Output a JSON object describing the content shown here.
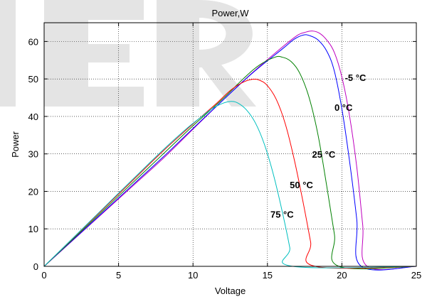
{
  "chart_data": {
    "type": "line",
    "title": "Power,W",
    "xlabel": "Voltage",
    "ylabel": "Power",
    "xlim": [
      0,
      25
    ],
    "ylim": [
      0,
      65
    ],
    "xticks": [
      0,
      5,
      10,
      15,
      20,
      25
    ],
    "yticks": [
      0,
      10,
      20,
      30,
      40,
      50,
      60
    ],
    "grid": true,
    "series": [
      {
        "name": "-5 °C",
        "color": "#bf00bf",
        "label_at": [
          20.2,
          49.5
        ],
        "points": [
          [
            0,
            0
          ],
          [
            2,
            7.2
          ],
          [
            4,
            14.4
          ],
          [
            6,
            21.6
          ],
          [
            8,
            28.8
          ],
          [
            10,
            36.6
          ],
          [
            12,
            44.3
          ],
          [
            14,
            51.7
          ],
          [
            16,
            58.5
          ],
          [
            17.0,
            61.6
          ],
          [
            17.5,
            62.4
          ],
          [
            18.0,
            62.8
          ],
          [
            18.5,
            62.2
          ],
          [
            19.0,
            60.3
          ],
          [
            19.5,
            57.0
          ],
          [
            20.0,
            50.5
          ],
          [
            20.5,
            40.5
          ],
          [
            21.0,
            26.5
          ],
          [
            21.4,
            11.0
          ],
          [
            21.7,
            0
          ],
          [
            25,
            0
          ]
        ]
      },
      {
        "name": "0 °C",
        "color": "#0000ff",
        "label_at": [
          19.5,
          41.5
        ],
        "points": [
          [
            0,
            0
          ],
          [
            2,
            7.3
          ],
          [
            4,
            14.6
          ],
          [
            6,
            21.9
          ],
          [
            8,
            29.2
          ],
          [
            10,
            36.8
          ],
          [
            12,
            44.3
          ],
          [
            14,
            51.6
          ],
          [
            16,
            58.0
          ],
          [
            16.8,
            60.6
          ],
          [
            17.4,
            61.7
          ],
          [
            17.8,
            61.6
          ],
          [
            18.4,
            60.4
          ],
          [
            19.0,
            57.3
          ],
          [
            19.5,
            52.0
          ],
          [
            20.0,
            42.0
          ],
          [
            20.5,
            28.5
          ],
          [
            21.0,
            12.5
          ],
          [
            21.3,
            0
          ],
          [
            25,
            0
          ]
        ]
      },
      {
        "name": "25 °C",
        "color": "#008000",
        "label_at": [
          18.0,
          29.0
        ],
        "points": [
          [
            0,
            0
          ],
          [
            2,
            7.5
          ],
          [
            4,
            15.0
          ],
          [
            6,
            22.5
          ],
          [
            8,
            30.0
          ],
          [
            10,
            37.5
          ],
          [
            12,
            44.7
          ],
          [
            13.5,
            50.5
          ],
          [
            14.5,
            53.8
          ],
          [
            15.5,
            55.8
          ],
          [
            16.0,
            55.8
          ],
          [
            16.6,
            54.6
          ],
          [
            17.2,
            51.3
          ],
          [
            17.8,
            45.0
          ],
          [
            18.4,
            35.0
          ],
          [
            19.0,
            21.0
          ],
          [
            19.5,
            8.5
          ],
          [
            19.8,
            0
          ],
          [
            25,
            0
          ]
        ]
      },
      {
        "name": "50 °C",
        "color": "#ff0000",
        "label_at": [
          16.5,
          20.8
        ],
        "points": [
          [
            0,
            0
          ],
          [
            2,
            7.7
          ],
          [
            4,
            15.4
          ],
          [
            6,
            23.1
          ],
          [
            8,
            30.8
          ],
          [
            10,
            38.0
          ],
          [
            11.5,
            43.2
          ],
          [
            12.5,
            46.9
          ],
          [
            13.3,
            49.0
          ],
          [
            14.0,
            49.9
          ],
          [
            14.5,
            49.6
          ],
          [
            15.0,
            48.2
          ],
          [
            15.6,
            44.5
          ],
          [
            16.2,
            38.0
          ],
          [
            16.8,
            28.5
          ],
          [
            17.4,
            17.0
          ],
          [
            17.9,
            6.5
          ],
          [
            18.2,
            0
          ],
          [
            25,
            0
          ]
        ]
      },
      {
        "name": "75 °C",
        "color": "#00bfbf",
        "label_at": [
          15.2,
          13.0
        ],
        "points": [
          [
            0,
            0
          ],
          [
            2,
            7.8
          ],
          [
            4,
            15.6
          ],
          [
            6,
            23.4
          ],
          [
            8,
            31.1
          ],
          [
            9.5,
            36.5
          ],
          [
            10.5,
            39.7
          ],
          [
            11.3,
            42.1
          ],
          [
            12.0,
            43.5
          ],
          [
            12.5,
            44.0
          ],
          [
            13.0,
            43.6
          ],
          [
            13.6,
            41.7
          ],
          [
            14.2,
            38.2
          ],
          [
            14.8,
            32.5
          ],
          [
            15.4,
            24.5
          ],
          [
            16.0,
            14.5
          ],
          [
            16.5,
            5.0
          ],
          [
            16.7,
            0
          ],
          [
            25,
            0
          ]
        ]
      }
    ]
  }
}
